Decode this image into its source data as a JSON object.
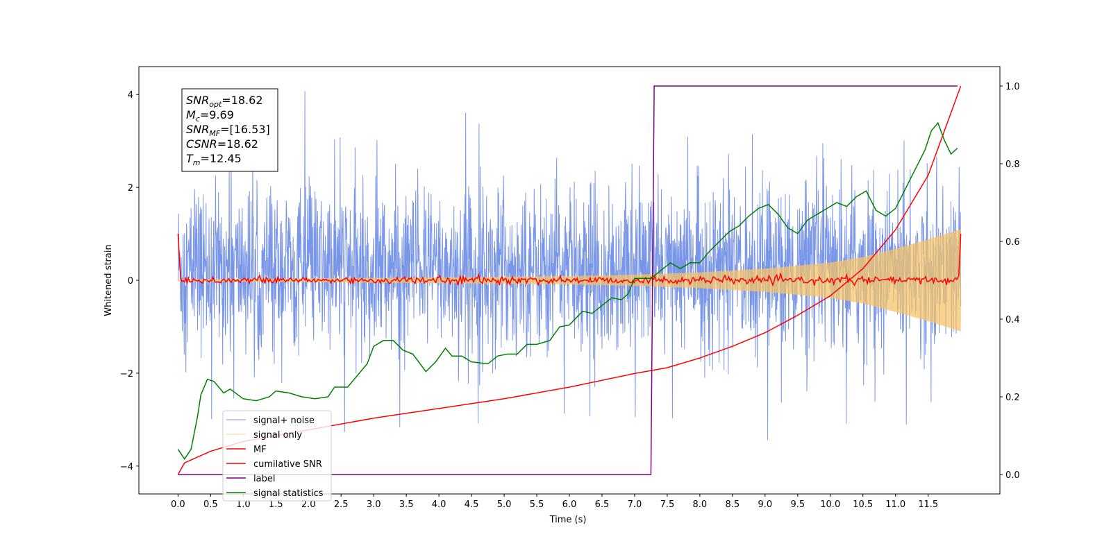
{
  "chart_data": {
    "type": "line",
    "xlabel": "Time (s)",
    "ylabel": "Whitened strain",
    "xlim": [
      -0.6,
      12.6
    ],
    "ylim_left": [
      -4.6,
      4.6
    ],
    "ylim_right": [
      -0.05,
      1.05
    ],
    "x_ticks": [
      "0.0",
      "0.5",
      "1.0",
      "1.5",
      "2.0",
      "2.5",
      "3.0",
      "3.5",
      "4.0",
      "4.5",
      "5.0",
      "5.5",
      "6.0",
      "6.5",
      "7.0",
      "7.5",
      "8.0",
      "8.5",
      "9.0",
      "9.5",
      "10.0",
      "10.5",
      "11.0",
      "11.5"
    ],
    "y_ticks_left": [
      "4",
      "2",
      "0",
      "−2",
      "−4"
    ],
    "y_ticks_right": [
      "1.0",
      "0.8",
      "0.6",
      "0.4",
      "0.2",
      "0.0"
    ],
    "annotation": [
      {
        "main": "SNR",
        "sub": "opt",
        "value": "=18.62"
      },
      {
        "main": "M",
        "sub": "c",
        "value": "=9.69"
      },
      {
        "main": "SNR",
        "sub": "MF",
        "value": "=[16.53]"
      },
      {
        "main": "CSNR",
        "sub": "",
        "value": "=18.62"
      },
      {
        "main": "T",
        "sub": "m",
        "value": "=12.45"
      }
    ],
    "legend_position": "lower-left",
    "series": [
      {
        "name": "signal+ noise",
        "color": "#7a96e8",
        "axis": "left",
        "description": "noisy strain, roughly spanning -2.8 to 3.2 with spikes to about ±4.1, x from 0.0 to 12.0"
      },
      {
        "name": "signal only",
        "color": "#f5c36a",
        "axis": "left",
        "envelope": [
          [
            0.0,
            0.02
          ],
          [
            2.0,
            0.04
          ],
          [
            4.0,
            0.06
          ],
          [
            6.0,
            0.09
          ],
          [
            7.0,
            0.12
          ],
          [
            8.0,
            0.17
          ],
          [
            9.0,
            0.25
          ],
          [
            10.0,
            0.38
          ],
          [
            10.5,
            0.5
          ],
          [
            11.0,
            0.68
          ],
          [
            11.5,
            0.88
          ],
          [
            12.0,
            1.1
          ]
        ]
      },
      {
        "name": "MF",
        "color": "#ff0000",
        "axis": "left",
        "description": "matched-filter output near 0 with small jitter, 1.0 at x=0 and x=12"
      },
      {
        "name": "cumilative SNR",
        "color": "#ff0000",
        "axis": "right",
        "points": [
          [
            0.0,
            0.0
          ],
          [
            0.1,
            0.03
          ],
          [
            0.5,
            0.06
          ],
          [
            1.0,
            0.085
          ],
          [
            2.0,
            0.115
          ],
          [
            3.0,
            0.145
          ],
          [
            4.0,
            0.17
          ],
          [
            5.0,
            0.195
          ],
          [
            6.0,
            0.225
          ],
          [
            7.0,
            0.26
          ],
          [
            7.5,
            0.275
          ],
          [
            8.0,
            0.3
          ],
          [
            8.5,
            0.33
          ],
          [
            9.0,
            0.365
          ],
          [
            9.5,
            0.41
          ],
          [
            10.0,
            0.46
          ],
          [
            10.5,
            0.53
          ],
          [
            11.0,
            0.63
          ],
          [
            11.5,
            0.77
          ],
          [
            12.0,
            1.0
          ]
        ]
      },
      {
        "name": "label",
        "color": "#800080",
        "axis": "right",
        "points": [
          [
            0.0,
            0.0
          ],
          [
            7.25,
            0.0
          ],
          [
            7.3,
            1.0
          ],
          [
            11.95,
            1.0
          ]
        ]
      },
      {
        "name": "signal statistics",
        "color": "#008000",
        "axis": "right",
        "points": [
          [
            0.0,
            0.065
          ],
          [
            0.1,
            0.04
          ],
          [
            0.2,
            0.065
          ],
          [
            0.3,
            0.15
          ],
          [
            0.35,
            0.205
          ],
          [
            0.45,
            0.245
          ],
          [
            0.55,
            0.24
          ],
          [
            0.7,
            0.21
          ],
          [
            0.8,
            0.22
          ],
          [
            1.0,
            0.195
          ],
          [
            1.2,
            0.19
          ],
          [
            1.4,
            0.2
          ],
          [
            1.5,
            0.215
          ],
          [
            1.7,
            0.21
          ],
          [
            1.9,
            0.2
          ],
          [
            2.1,
            0.195
          ],
          [
            2.3,
            0.2
          ],
          [
            2.4,
            0.225
          ],
          [
            2.6,
            0.225
          ],
          [
            2.8,
            0.265
          ],
          [
            2.9,
            0.285
          ],
          [
            3.0,
            0.33
          ],
          [
            3.15,
            0.345
          ],
          [
            3.3,
            0.345
          ],
          [
            3.45,
            0.32
          ],
          [
            3.6,
            0.31
          ],
          [
            3.8,
            0.265
          ],
          [
            3.95,
            0.29
          ],
          [
            4.1,
            0.325
          ],
          [
            4.2,
            0.305
          ],
          [
            4.35,
            0.305
          ],
          [
            4.5,
            0.29
          ],
          [
            4.75,
            0.285
          ],
          [
            4.9,
            0.305
          ],
          [
            5.05,
            0.31
          ],
          [
            5.2,
            0.31
          ],
          [
            5.35,
            0.335
          ],
          [
            5.5,
            0.335
          ],
          [
            5.7,
            0.345
          ],
          [
            5.85,
            0.38
          ],
          [
            6.0,
            0.385
          ],
          [
            6.2,
            0.42
          ],
          [
            6.35,
            0.415
          ],
          [
            6.5,
            0.435
          ],
          [
            6.65,
            0.455
          ],
          [
            6.8,
            0.45
          ],
          [
            6.9,
            0.465
          ],
          [
            7.0,
            0.505
          ],
          [
            7.15,
            0.505
          ],
          [
            7.25,
            0.505
          ],
          [
            7.4,
            0.525
          ],
          [
            7.55,
            0.545
          ],
          [
            7.7,
            0.53
          ],
          [
            7.85,
            0.545
          ],
          [
            8.0,
            0.545
          ],
          [
            8.15,
            0.575
          ],
          [
            8.3,
            0.6
          ],
          [
            8.45,
            0.625
          ],
          [
            8.6,
            0.64
          ],
          [
            8.75,
            0.665
          ],
          [
            8.9,
            0.685
          ],
          [
            9.05,
            0.695
          ],
          [
            9.2,
            0.67
          ],
          [
            9.35,
            0.635
          ],
          [
            9.5,
            0.62
          ],
          [
            9.65,
            0.655
          ],
          [
            9.8,
            0.67
          ],
          [
            9.95,
            0.685
          ],
          [
            10.1,
            0.7
          ],
          [
            10.25,
            0.69
          ],
          [
            10.4,
            0.715
          ],
          [
            10.55,
            0.73
          ],
          [
            10.7,
            0.68
          ],
          [
            10.85,
            0.665
          ],
          [
            11.0,
            0.685
          ],
          [
            11.15,
            0.735
          ],
          [
            11.3,
            0.785
          ],
          [
            11.45,
            0.835
          ],
          [
            11.55,
            0.885
          ],
          [
            11.65,
            0.905
          ],
          [
            11.75,
            0.86
          ],
          [
            11.85,
            0.825
          ],
          [
            11.95,
            0.84
          ]
        ]
      }
    ]
  }
}
